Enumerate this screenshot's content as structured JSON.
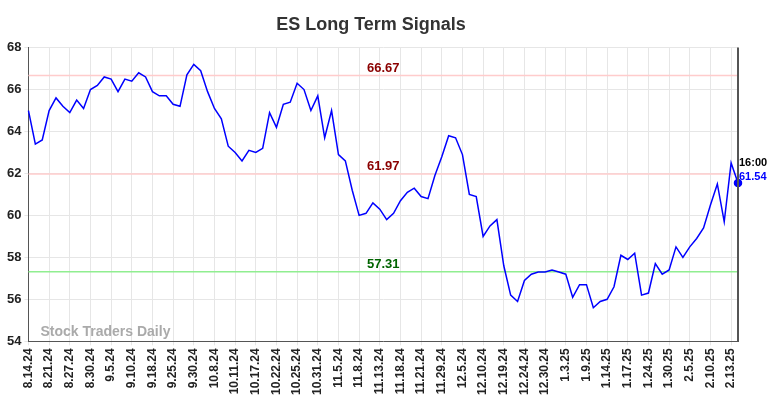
{
  "chart_data": {
    "type": "line",
    "title": "ES Long Term Signals",
    "categories": [
      "8.14.24",
      null,
      null,
      "8.21.24",
      null,
      null,
      "8.27.24",
      null,
      null,
      "8.30.24",
      null,
      null,
      "9.5.24",
      null,
      null,
      "9.10.24",
      null,
      null,
      "9.18.24",
      null,
      null,
      "9.25.24",
      null,
      null,
      "9.30.24",
      null,
      null,
      "10.8.24",
      null,
      null,
      "10.11.24",
      null,
      null,
      "10.17.24",
      null,
      null,
      "10.22.24",
      null,
      null,
      "10.25.24",
      null,
      null,
      "10.31.24",
      null,
      null,
      "11.5.24",
      null,
      null,
      "11.8.24",
      null,
      null,
      "11.13.24",
      null,
      null,
      "11.18.24",
      null,
      null,
      "11.21.24",
      null,
      null,
      "11.29.24",
      null,
      null,
      "12.5.24",
      null,
      null,
      "12.10.24",
      null,
      null,
      "12.19.24",
      null,
      null,
      "12.24.24",
      null,
      null,
      "12.30.24",
      null,
      null,
      "1.3.25",
      null,
      null,
      "1.9.25",
      null,
      null,
      "1.14.25",
      null,
      null,
      "1.17.25",
      null,
      null,
      "1.24.25",
      null,
      null,
      "1.30.25",
      null,
      null,
      "2.5.25",
      null,
      null,
      "2.10.25",
      null,
      null,
      "2.13.25",
      null
    ],
    "values": [
      65.0,
      63.4,
      63.6,
      65.0,
      65.6,
      65.2,
      64.9,
      65.5,
      65.1,
      66.0,
      66.2,
      66.6,
      66.5,
      65.9,
      66.5,
      66.4,
      66.8,
      66.6,
      65.9,
      65.7,
      65.7,
      65.3,
      65.2,
      66.7,
      67.2,
      66.9,
      65.9,
      65.1,
      64.6,
      63.3,
      63.0,
      62.6,
      63.1,
      63.0,
      63.2,
      64.9,
      64.2,
      65.3,
      65.4,
      66.3,
      66.0,
      65.0,
      65.7,
      63.7,
      65.0,
      62.9,
      62.6,
      61.2,
      60.0,
      60.1,
      60.6,
      60.3,
      59.8,
      60.1,
      60.7,
      61.1,
      61.3,
      60.9,
      60.8,
      61.9,
      62.8,
      63.8,
      63.7,
      62.9,
      61.0,
      60.9,
      59.0,
      59.5,
      59.8,
      57.6,
      56.2,
      55.9,
      56.9,
      57.2,
      57.3,
      57.3,
      57.4,
      57.3,
      57.2,
      56.1,
      56.7,
      56.7,
      55.6,
      55.9,
      56.0,
      56.6,
      58.1,
      57.9,
      58.2,
      56.2,
      56.3,
      57.7,
      57.2,
      57.4,
      58.5,
      58.0,
      58.5,
      58.9,
      59.4,
      60.5,
      61.5,
      59.7,
      62.5,
      61.54
    ],
    "color": "#0000ff",
    "ylim": [
      54,
      68
    ],
    "yticks": [
      54,
      56,
      58,
      60,
      62,
      64,
      66,
      68
    ],
    "grid": true,
    "annotations": [
      {
        "text": "66.67",
        "value": 66.67,
        "color": "#8b0000",
        "line_color": "#ffcccc"
      },
      {
        "text": "61.97",
        "value": 61.97,
        "color": "#8b0000",
        "line_color": "#ffcccc"
      },
      {
        "text": "57.31",
        "value": 57.31,
        "color": "#006400",
        "line_color": "#90ee90"
      }
    ],
    "end_time": "16:00",
    "watermark": "Stock Traders Daily"
  }
}
